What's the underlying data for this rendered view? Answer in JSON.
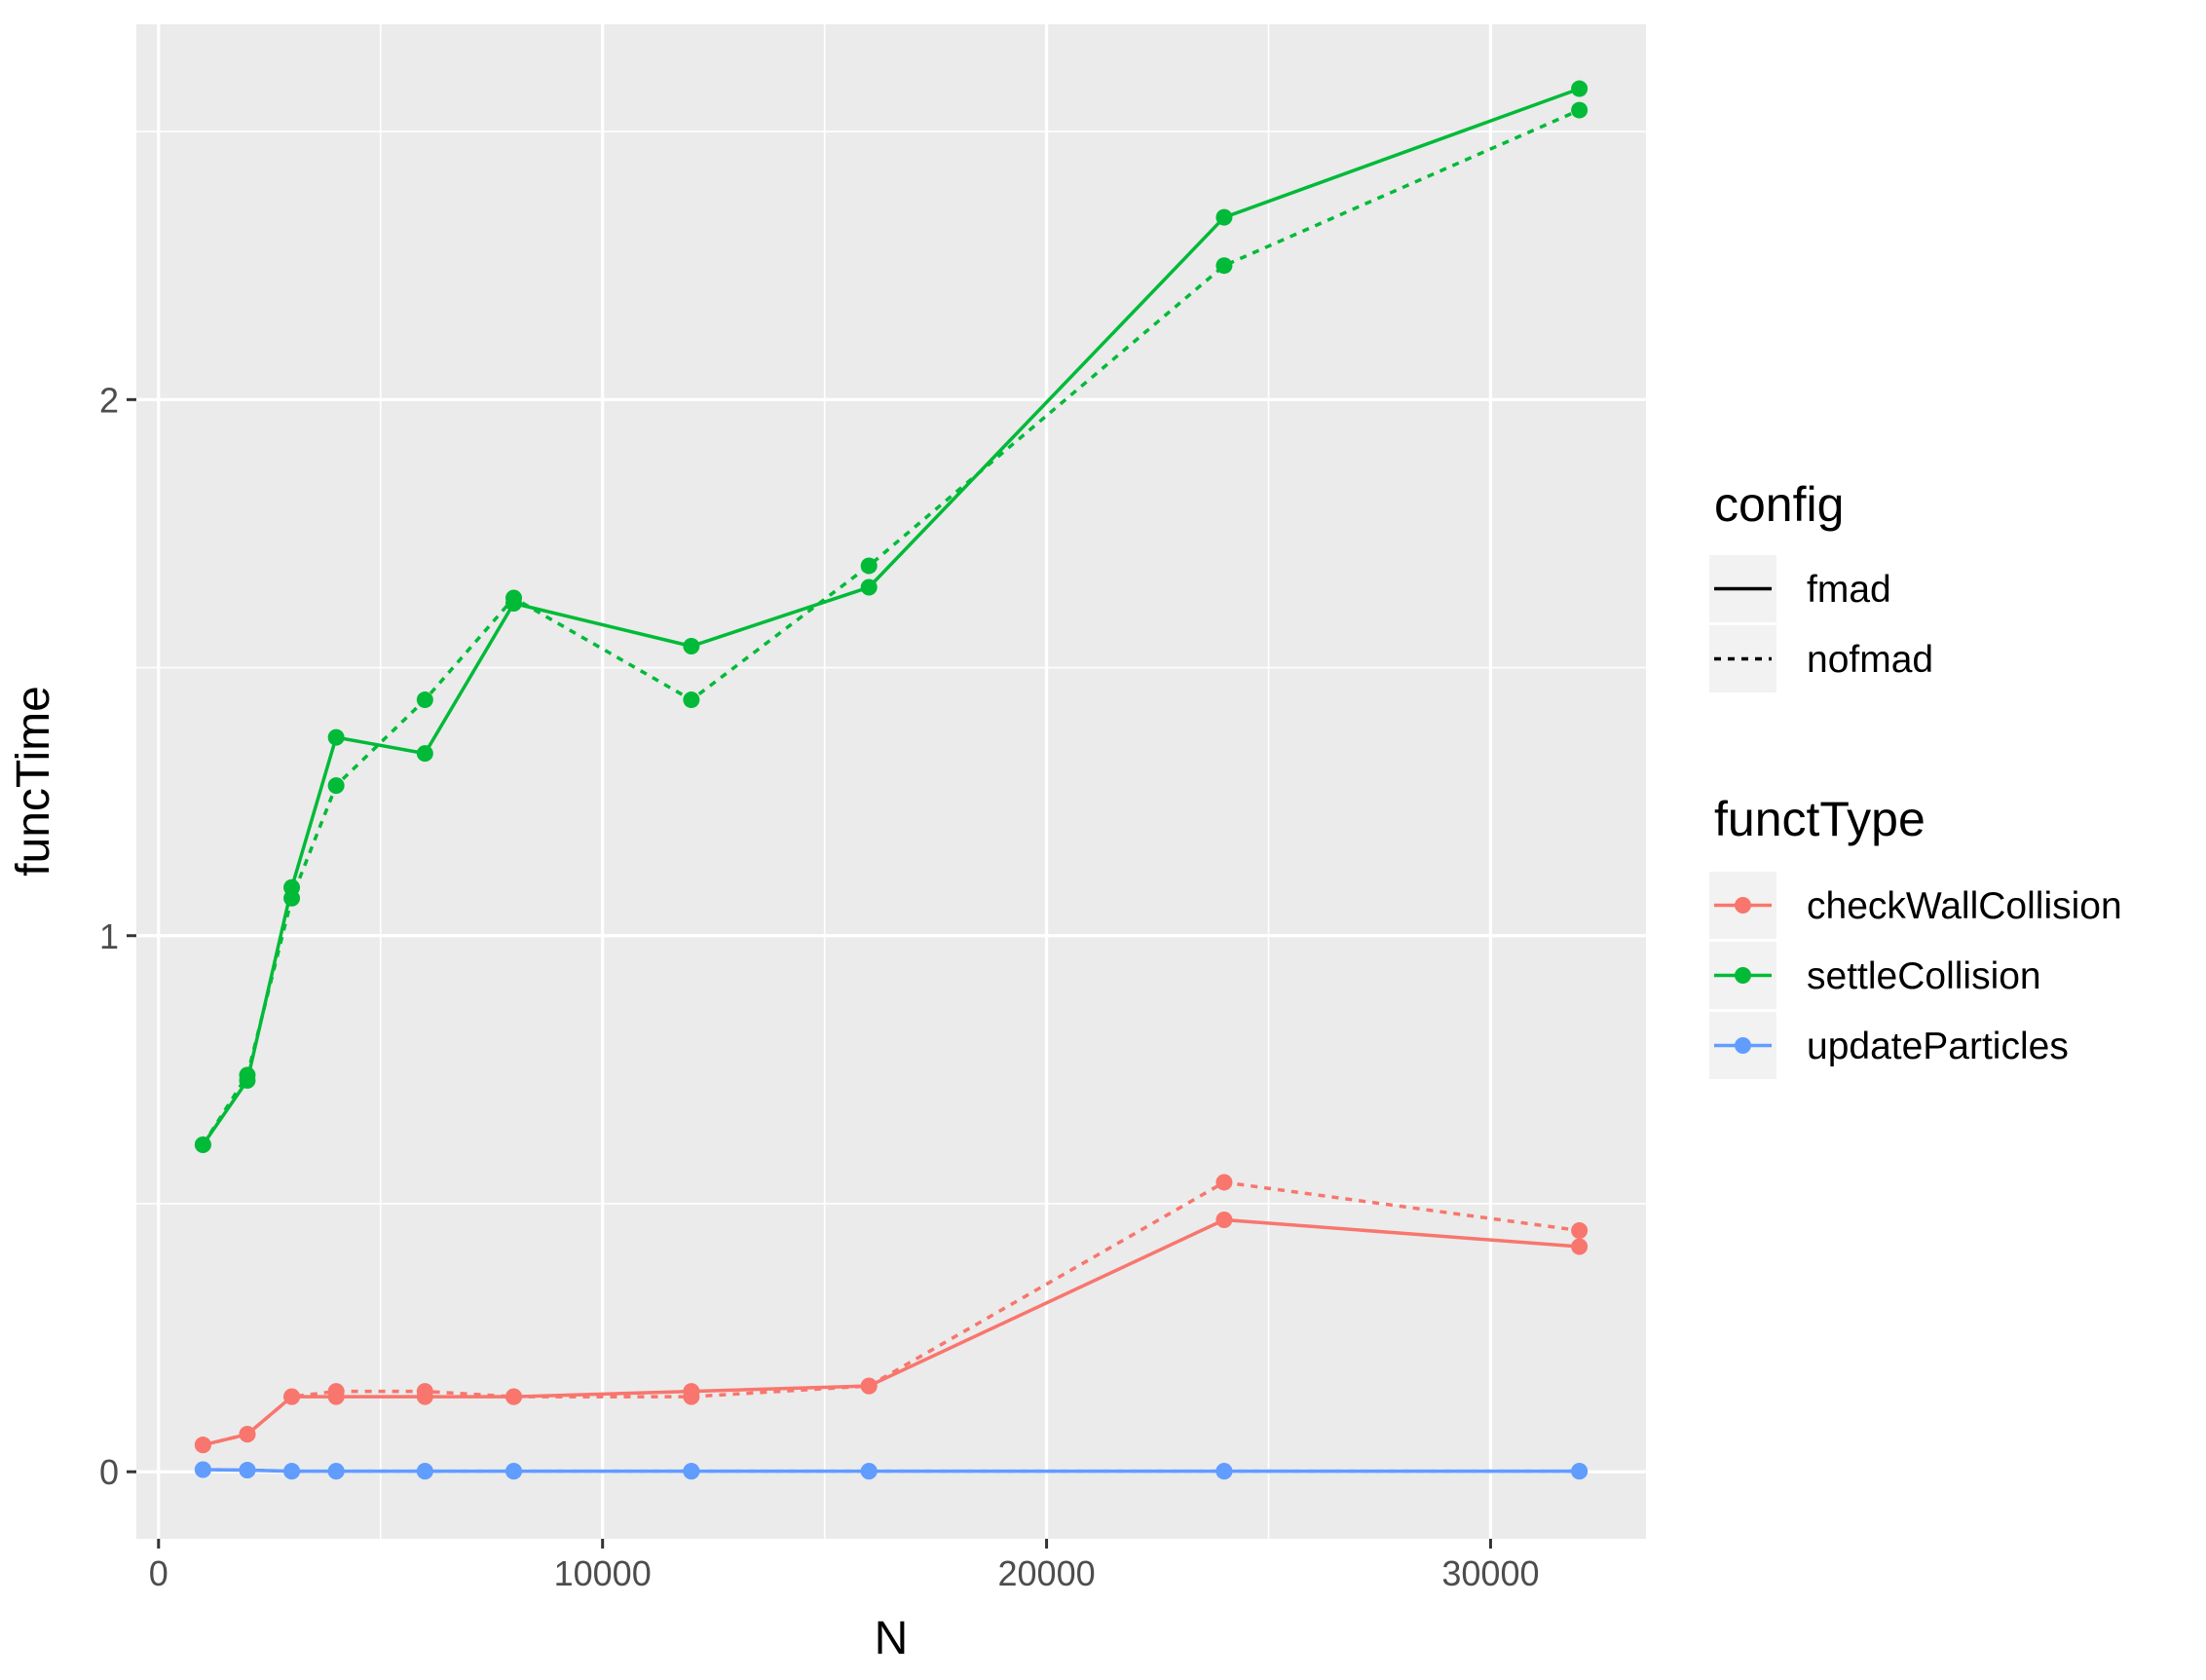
{
  "chart_data": {
    "type": "line",
    "xlabel": "N",
    "ylabel": "funcTime",
    "xlim": [
      -500,
      33500
    ],
    "ylim": [
      -0.125,
      2.7
    ],
    "x_ticks": [
      0,
      10000,
      20000,
      30000
    ],
    "x_tick_labels": [
      "0",
      "10000",
      "20000",
      "30000"
    ],
    "y_ticks": [
      0,
      1,
      2
    ],
    "y_tick_labels": [
      "0",
      "1",
      "2"
    ],
    "grid": true,
    "panel_background": "#ebebeb",
    "legend_position": "right",
    "legend": {
      "config": {
        "title": "config",
        "items": [
          {
            "label": "fmad",
            "linetype": "solid"
          },
          {
            "label": "nofmad",
            "linetype": "dotted"
          }
        ]
      },
      "functType": {
        "title": "functType",
        "items": [
          {
            "label": "checkWallCollision",
            "color": "#F8766D"
          },
          {
            "label": "settleCollision",
            "color": "#00BA38"
          },
          {
            "label": "updateParticles",
            "color": "#619CFF"
          }
        ]
      }
    },
    "x": [
      1000,
      2000,
      3000,
      4000,
      6000,
      8000,
      12000,
      16000,
      24000,
      32000
    ],
    "series": [
      {
        "functType": "settleCollision",
        "config": "fmad",
        "color": "#00BA38",
        "linetype": "solid",
        "values": [
          0.61,
          0.73,
          1.09,
          1.37,
          1.34,
          1.62,
          1.54,
          1.65,
          2.34,
          2.58
        ]
      },
      {
        "functType": "settleCollision",
        "config": "nofmad",
        "color": "#00BA38",
        "linetype": "dotted",
        "values": [
          0.61,
          0.74,
          1.07,
          1.28,
          1.44,
          1.63,
          1.44,
          1.69,
          2.25,
          2.54
        ]
      },
      {
        "functType": "checkWallCollision",
        "config": "fmad",
        "color": "#F8766D",
        "linetype": "solid",
        "values": [
          0.05,
          0.07,
          0.14,
          0.14,
          0.14,
          0.14,
          0.15,
          0.16,
          0.47,
          0.42
        ]
      },
      {
        "functType": "checkWallCollision",
        "config": "nofmad",
        "color": "#F8766D",
        "linetype": "dotted",
        "values": [
          0.05,
          0.07,
          0.14,
          0.15,
          0.15,
          0.14,
          0.14,
          0.16,
          0.54,
          0.45
        ]
      },
      {
        "functType": "updateParticles",
        "config": "fmad",
        "color": "#619CFF",
        "linetype": "solid",
        "values": [
          0.004,
          0.003,
          0.001,
          0.001,
          0.001,
          0.001,
          0.001,
          0.001,
          0.001,
          0.001
        ]
      },
      {
        "functType": "updateParticles",
        "config": "nofmad",
        "color": "#619CFF",
        "linetype": "dotted",
        "values": [
          0.004,
          0.003,
          0.001,
          0.001,
          0.001,
          0.001,
          0.001,
          0.001,
          0.001,
          0.001
        ]
      }
    ]
  }
}
